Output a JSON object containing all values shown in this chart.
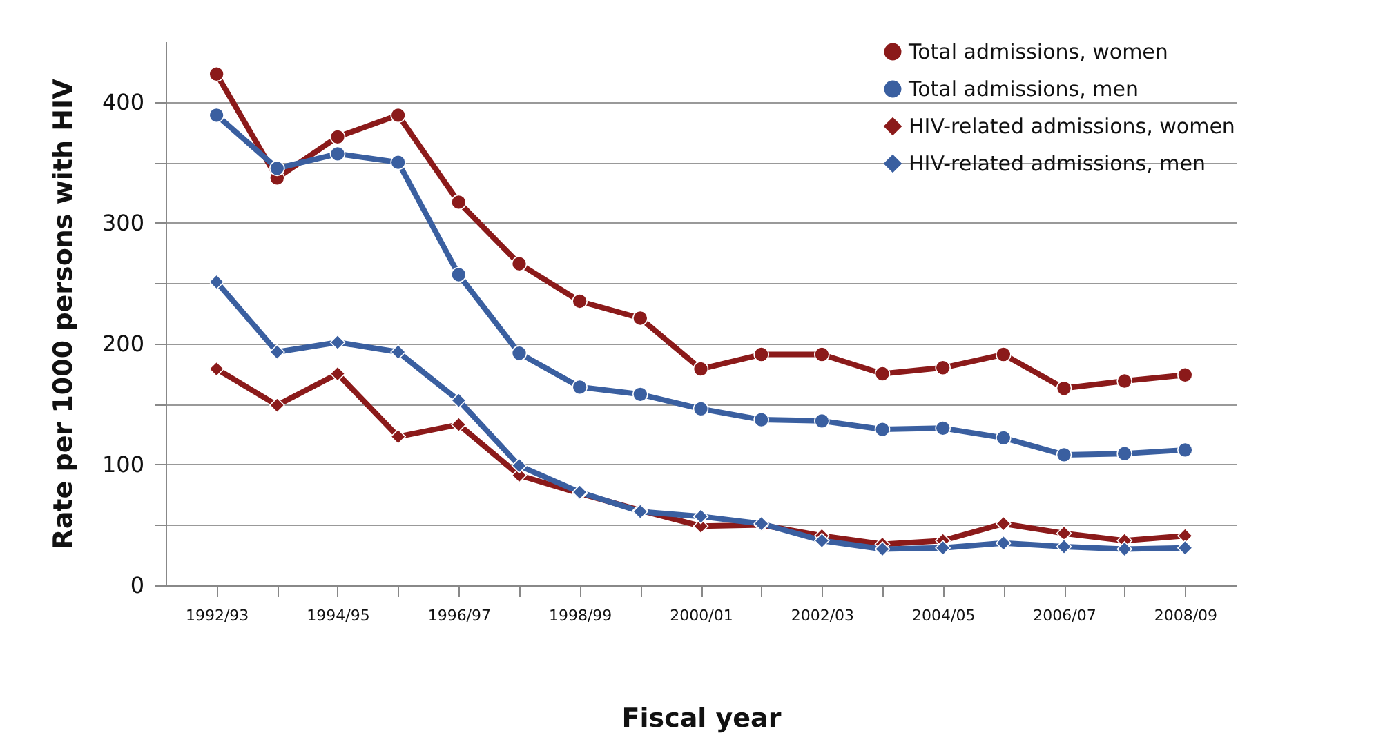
{
  "chart_data": {
    "type": "line",
    "xlabel": "Fiscal year",
    "ylabel": "Rate per 1000 persons with HIV",
    "categories": [
      "1992/93",
      null,
      "1994/95",
      null,
      "1996/97",
      null,
      "1998/99",
      null,
      "2000/01",
      null,
      "2002/03",
      null,
      "2004/05",
      null,
      "2006/07",
      null,
      "2008/09"
    ],
    "series": [
      {
        "name": "Total admissions, women",
        "color": "#8b1a1a",
        "marker": "circle",
        "values": [
          423,
          337,
          371,
          389,
          317,
          266,
          235,
          221,
          179,
          191,
          191,
          175,
          180,
          191,
          163,
          169,
          174
        ]
      },
      {
        "name": "Total admissions, men",
        "color": "#3a5fa0",
        "marker": "circle",
        "values": [
          389,
          345,
          357,
          350,
          257,
          192,
          164,
          158,
          146,
          137,
          136,
          129,
          130,
          122,
          108,
          109,
          112
        ]
      },
      {
        "name": "HIV-related admissions, women",
        "color": "#8b1a1a",
        "marker": "diamond",
        "values": [
          179,
          149,
          175,
          123,
          133,
          91,
          76,
          62,
          49,
          50,
          41,
          34,
          37,
          51,
          43,
          37,
          41
        ]
      },
      {
        "name": "HIV-related admissions, men",
        "color": "#3a5fa0",
        "marker": "diamond",
        "values": [
          251,
          193,
          201,
          193,
          153,
          99,
          77,
          61,
          57,
          51,
          37,
          30,
          31,
          35,
          32,
          30,
          31
        ]
      }
    ],
    "ylim": [
      0,
      450
    ],
    "yticks": [
      0,
      {
        "value": 50,
        "label": null
      },
      100,
      {
        "value": 150,
        "label": null
      },
      200,
      {
        "value": 250,
        "label": null
      },
      300,
      {
        "value": 350,
        "label": null
      },
      400
    ],
    "grid": "y",
    "legend": "top right",
    "line_style": "solid"
  }
}
